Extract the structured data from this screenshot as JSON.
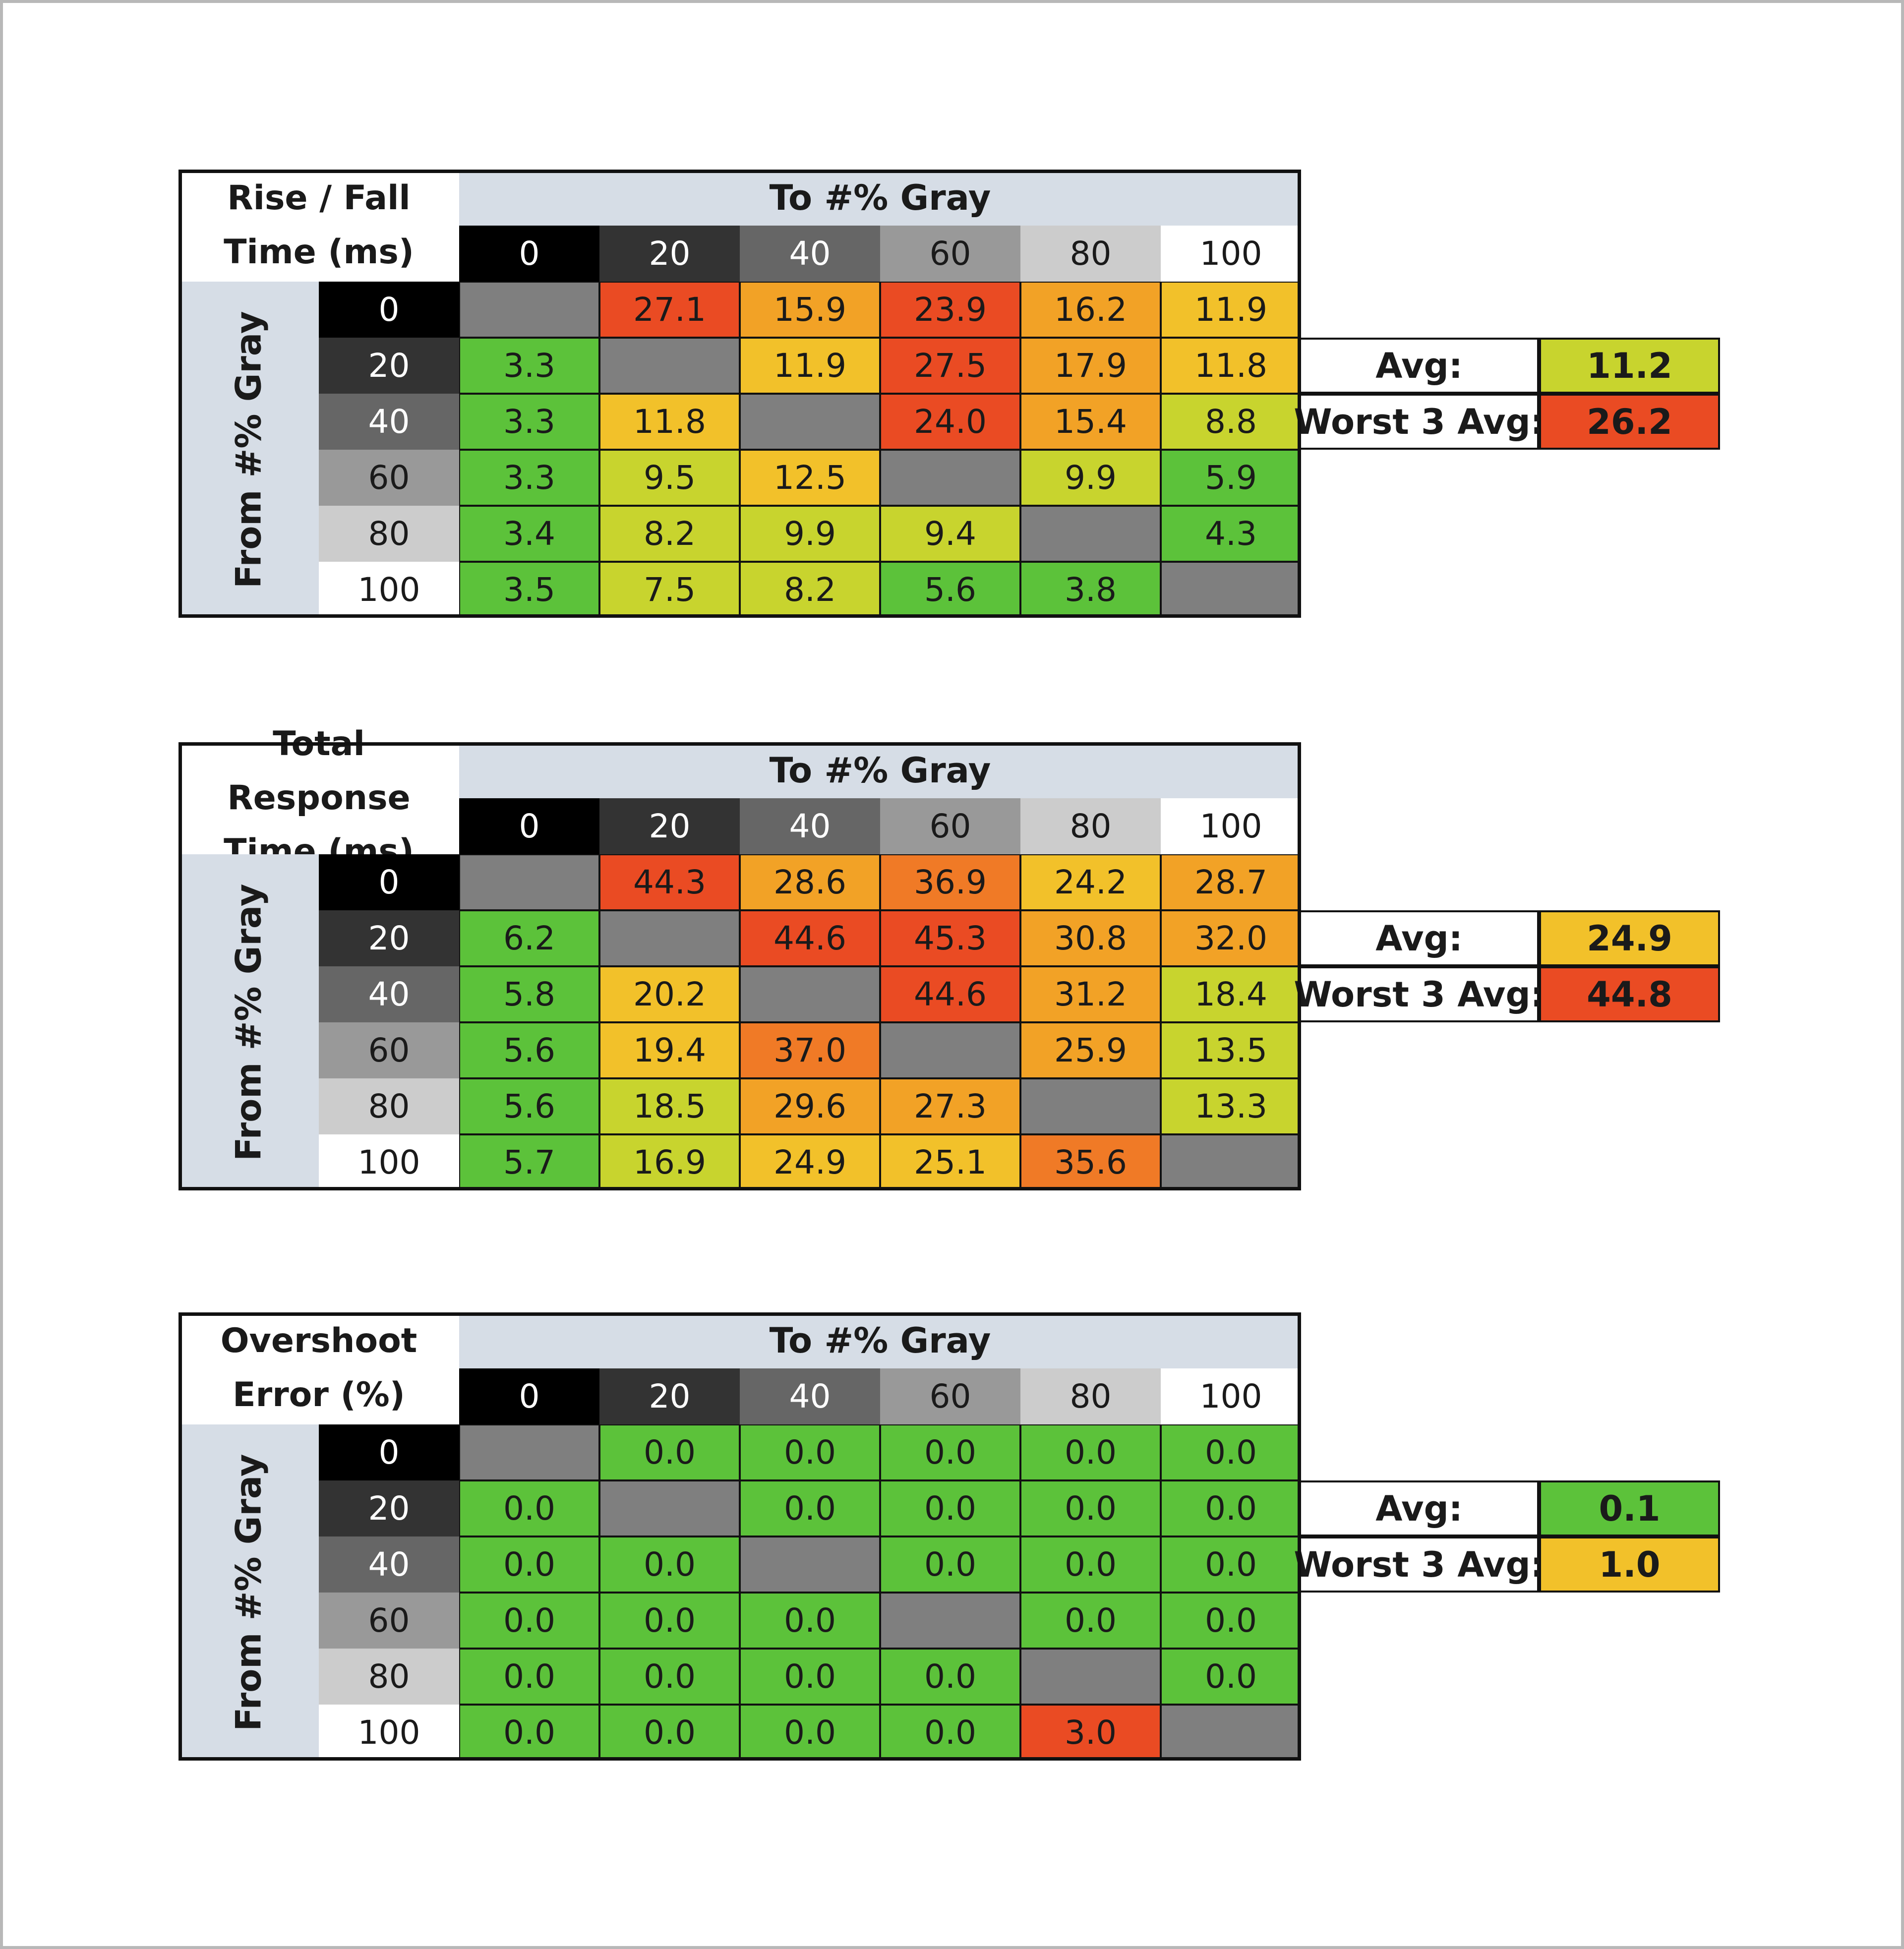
{
  "chart_data": [
    {
      "type": "table",
      "title": "Rise / Fall Time (ms)",
      "col_header": "To #% Gray",
      "row_header": "From #% Gray",
      "levels": [
        "0",
        "20",
        "40",
        "60",
        "80",
        "100"
      ],
      "rows": [
        [
          "",
          "27.1",
          "15.9",
          "23.9",
          "16.2",
          "11.9"
        ],
        [
          "3.3",
          "",
          "11.9",
          "27.5",
          "17.9",
          "11.8"
        ],
        [
          "3.3",
          "11.8",
          "",
          "24.0",
          "15.4",
          "8.8"
        ],
        [
          "3.3",
          "9.5",
          "12.5",
          "",
          "9.9",
          "5.9"
        ],
        [
          "3.4",
          "8.2",
          "9.9",
          "9.4",
          "",
          "4.3"
        ],
        [
          "3.5",
          "7.5",
          "8.2",
          "5.6",
          "3.8",
          ""
        ]
      ],
      "summary": [
        {
          "label": "Avg:",
          "value": "11.2"
        },
        {
          "label": "Worst 3 Avg:",
          "value": "26.2"
        }
      ]
    },
    {
      "type": "table",
      "title": "Total Response Time (ms)",
      "col_header": "To #% Gray",
      "row_header": "From #% Gray",
      "levels": [
        "0",
        "20",
        "40",
        "60",
        "80",
        "100"
      ],
      "rows": [
        [
          "",
          "44.3",
          "28.6",
          "36.9",
          "24.2",
          "28.7"
        ],
        [
          "6.2",
          "",
          "44.6",
          "45.3",
          "30.8",
          "32.0"
        ],
        [
          "5.8",
          "20.2",
          "",
          "44.6",
          "31.2",
          "18.4"
        ],
        [
          "5.6",
          "19.4",
          "37.0",
          "",
          "25.9",
          "13.5"
        ],
        [
          "5.6",
          "18.5",
          "29.6",
          "27.3",
          "",
          "13.3"
        ],
        [
          "5.7",
          "16.9",
          "24.9",
          "25.1",
          "35.6",
          ""
        ]
      ],
      "summary": [
        {
          "label": "Avg:",
          "value": "24.9"
        },
        {
          "label": "Worst 3 Avg:",
          "value": "44.8"
        }
      ]
    },
    {
      "type": "table",
      "title": "Overshoot Error (%)",
      "col_header": "To #% Gray",
      "row_header": "From #% Gray",
      "levels": [
        "0",
        "20",
        "40",
        "60",
        "80",
        "100"
      ],
      "rows": [
        [
          "",
          "0.0",
          "0.0",
          "0.0",
          "0.0",
          "0.0"
        ],
        [
          "0.0",
          "",
          "0.0",
          "0.0",
          "0.0",
          "0.0"
        ],
        [
          "0.0",
          "0.0",
          "",
          "0.0",
          "0.0",
          "0.0"
        ],
        [
          "0.0",
          "0.0",
          "0.0",
          "",
          "0.0",
          "0.0"
        ],
        [
          "0.0",
          "0.0",
          "0.0",
          "0.0",
          "",
          "0.0"
        ],
        [
          "0.0",
          "0.0",
          "0.0",
          "0.0",
          "3.0",
          ""
        ]
      ],
      "summary": [
        {
          "label": "Avg:",
          "value": "0.1"
        },
        {
          "label": "Worst 3 Avg:",
          "value": "1.0"
        }
      ]
    }
  ],
  "colors": {
    "header_bg": "#d6dde6",
    "diagonal": "#7f7f7f",
    "level_bg": [
      "#000000",
      "#333333",
      "#666666",
      "#999999",
      "#cccccc",
      "#ffffff"
    ],
    "level_fg": [
      "#ffffff",
      "#ffffff",
      "#ffffff",
      "#1a1a1a",
      "#1a1a1a",
      "#1a1a1a"
    ],
    "scale": [
      "#5cc23a",
      "#c8d42e",
      "#f2c12a",
      "#f2a226",
      "#f07a26",
      "#ea4b23"
    ]
  }
}
